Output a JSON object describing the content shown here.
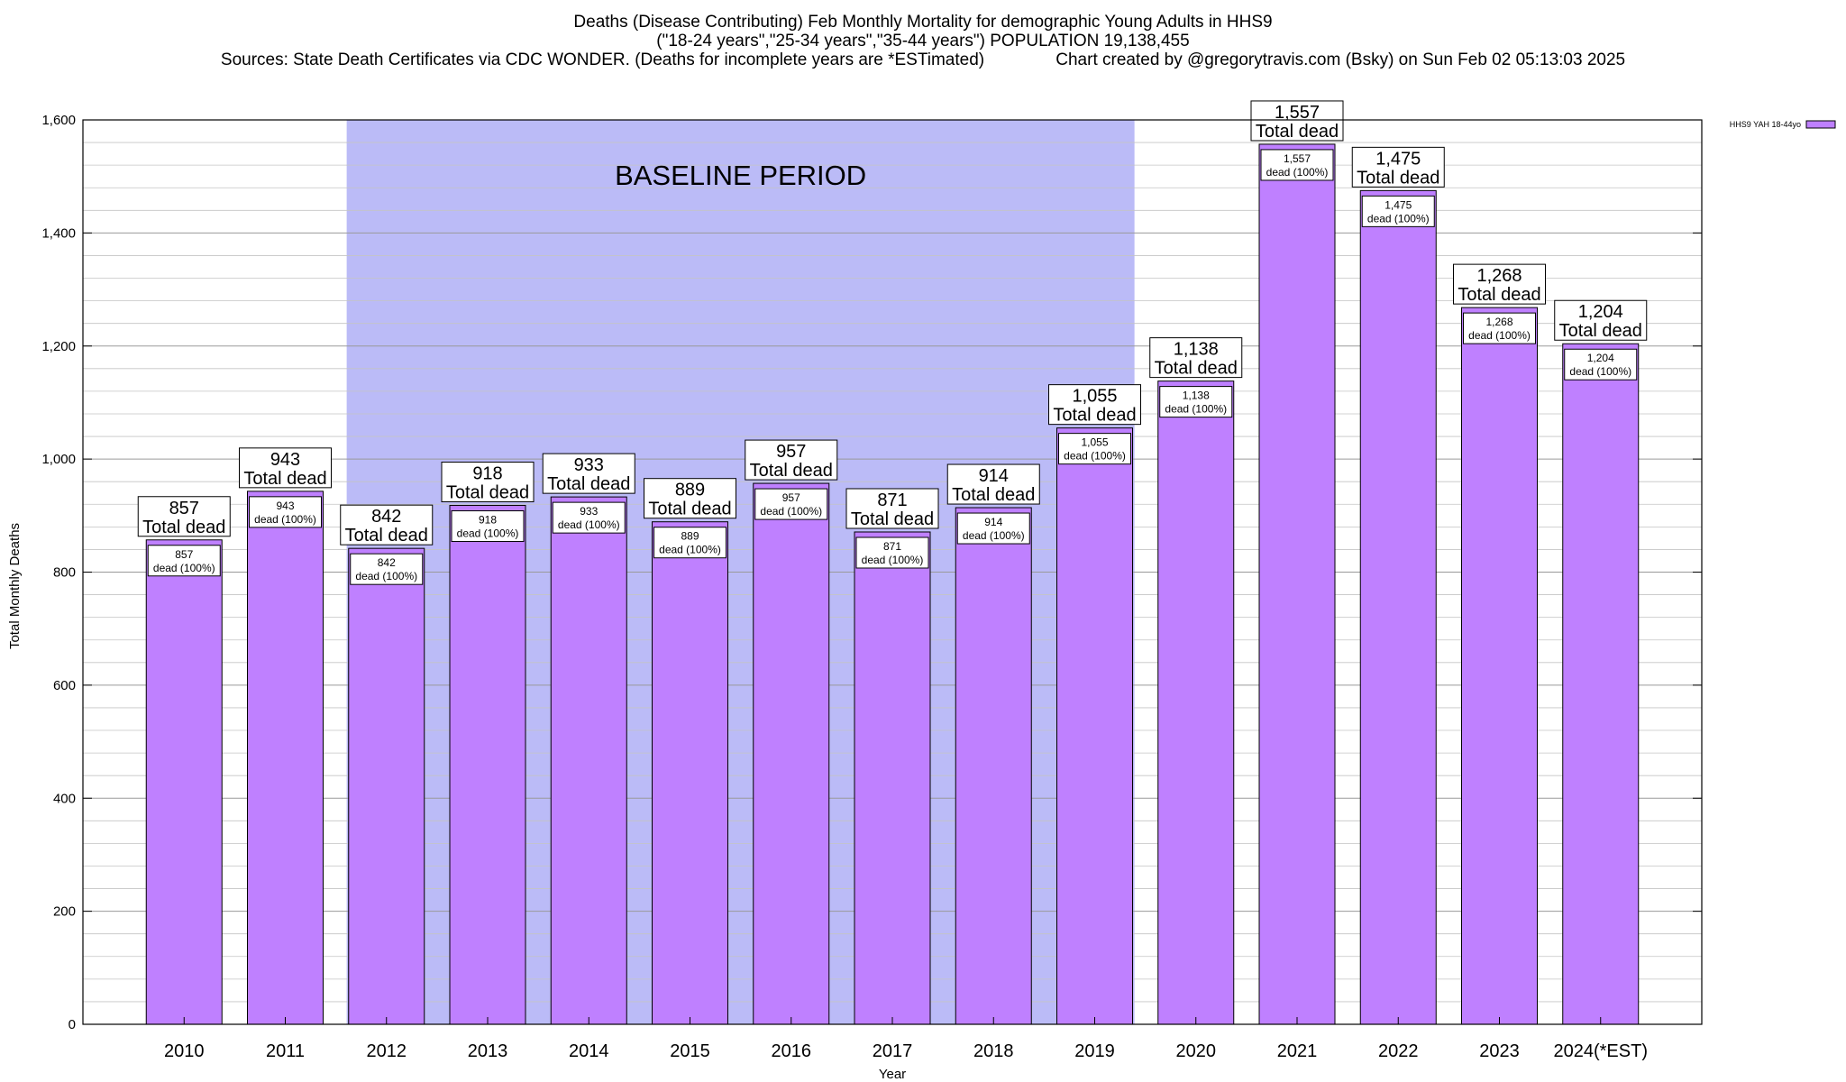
{
  "chart_data": {
    "type": "bar",
    "title_lines": [
      "Deaths (Disease Contributing) Feb Monthly Mortality for demographic Young Adults in HHS9",
      "(\"18-24 years\",\"25-34 years\",\"35-44 years\") POPULATION 19,138,455",
      "Sources: State Death Certificates via CDC WONDER. (Deaths for incomplete years are *ESTimated)               Chart created by @gregorytravis.com (Bsky) on Sun Feb 02 05:13:03 2025"
    ],
    "xlabel": "Year",
    "ylabel": "Total Monthly Deaths",
    "ylim": [
      0,
      1600
    ],
    "y_ticks": [
      0,
      200,
      400,
      600,
      800,
      1000,
      1200,
      1400,
      1600
    ],
    "y_tick_labels": [
      "0",
      "200",
      "400",
      "600",
      "800",
      "1,000",
      "1,200",
      "1,400",
      "1,600"
    ],
    "y_minor_step": 40,
    "grid": true,
    "categories": [
      "2010",
      "2011",
      "2012",
      "2013",
      "2014",
      "2015",
      "2016",
      "2017",
      "2018",
      "2019",
      "2020",
      "2021",
      "2022",
      "2023",
      "2024(*EST)"
    ],
    "series": [
      {
        "name": "HHS9 YAH 18-44yo",
        "color": "#bf80ff",
        "values": [
          857,
          943,
          842,
          918,
          933,
          889,
          957,
          871,
          914,
          1055,
          1138,
          1557,
          1475,
          1268,
          1204
        ]
      }
    ],
    "value_labels": [
      "857",
      "943",
      "842",
      "918",
      "933",
      "889",
      "957",
      "871",
      "914",
      "1,055",
      "1,138",
      "1,557",
      "1,475",
      "1,268",
      "1,204"
    ],
    "top_label_suffix": "Total dead",
    "inner_label_suffix": "dead (100%)",
    "shaded_region": {
      "label": "BASELINE PERIOD",
      "from_category": "2012",
      "to_category": "2019",
      "color": "#bbbbf7"
    },
    "legend": {
      "position": "top-right",
      "entries": [
        "HHS9 YAH 18-44yo"
      ]
    }
  }
}
